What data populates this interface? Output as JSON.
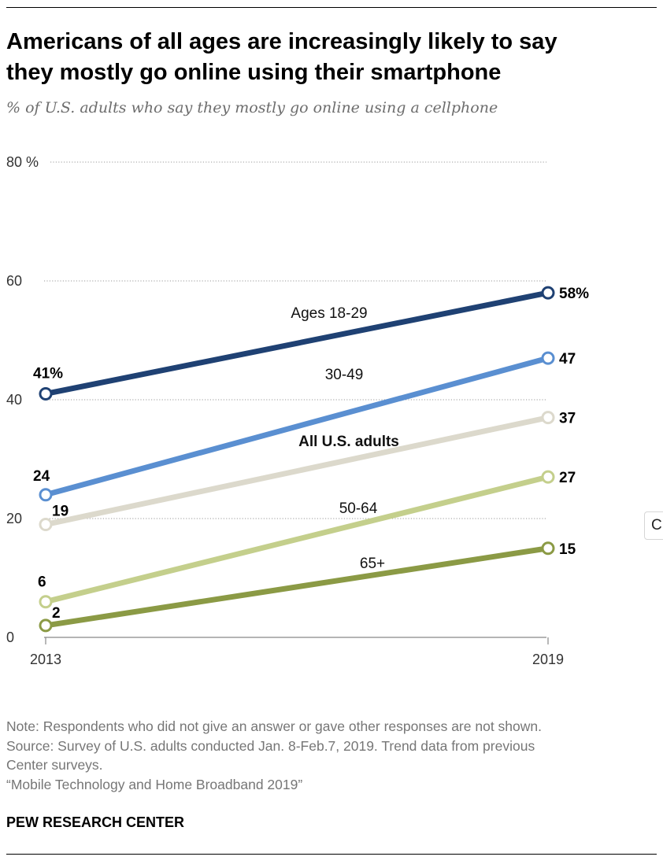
{
  "title_line1": "Americans of all ages are increasingly likely to say",
  "title_line2": "they mostly go online using their smartphone",
  "subtitle": "% of U.S. adults who say they mostly go online using a cellphone",
  "notes": {
    "note": "Note: Respondents who did not give an answer or gave other responses are not shown.",
    "source_line1": "Source: Survey of U.S. adults conducted Jan. 8-Feb.7, 2019. Trend data from previous",
    "source_line2": "Center surveys.",
    "report": "“Mobile Technology and Home Broadband 2019”"
  },
  "brand": "PEW RESEARCH CENTER",
  "side_button_label": "C",
  "chart_data": {
    "type": "line",
    "title": "Americans of all ages are increasingly likely to say they mostly go online using their smartphone",
    "subtitle": "% of U.S. adults who say they mostly go online using a cellphone",
    "x": [
      "2013",
      "2019"
    ],
    "ylim": [
      0,
      80
    ],
    "yticks": [
      0,
      20,
      40,
      60,
      80
    ],
    "ytick_labels": [
      "0",
      "20",
      "40",
      "60",
      "80 %"
    ],
    "grid": true,
    "series": [
      {
        "name": "Ages 18-29",
        "values": [
          41,
          58
        ],
        "labels": [
          "41%",
          "58%"
        ],
        "color": "#1f4173"
      },
      {
        "name": "30-49",
        "values": [
          24,
          47
        ],
        "labels": [
          "24",
          "47"
        ],
        "color": "#5a8fd1"
      },
      {
        "name": "All U.S. adults",
        "values": [
          19,
          37
        ],
        "labels": [
          "19",
          "37"
        ],
        "color": "#dcd9cc"
      },
      {
        "name": "50-64",
        "values": [
          6,
          27
        ],
        "labels": [
          "6",
          "27"
        ],
        "color": "#c4cf8c"
      },
      {
        "name": "65+",
        "values": [
          2,
          15
        ],
        "labels": [
          "2",
          "15"
        ],
        "color": "#8b9a45"
      }
    ]
  }
}
